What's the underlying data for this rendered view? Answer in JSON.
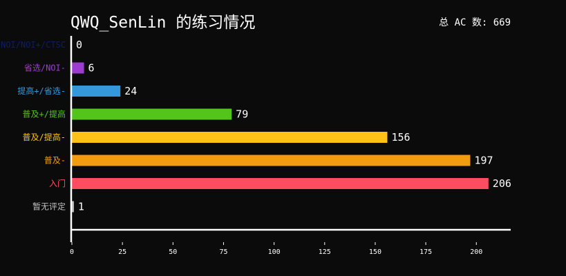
{
  "chart_data": {
    "type": "bar",
    "orientation": "horizontal",
    "title": "QWQ_SenLin 的练习情况",
    "total_label": "总 AC 数: 669",
    "categories": [
      "NOI/NOI+/CTSC",
      "省选/NOI-",
      "提高+/省选-",
      "普及+/提高",
      "普及/提高-",
      "普及-",
      "入门",
      "暂无评定"
    ],
    "values": [
      0,
      6,
      24,
      79,
      156,
      197,
      206,
      1
    ],
    "colors": [
      "#0e1d69",
      "#9d3dcf",
      "#3498db",
      "#52c41a",
      "#ffc116",
      "#f39c11",
      "#fe4c61",
      "#bfbfbf"
    ],
    "xticks": [
      0,
      25,
      50,
      75,
      100,
      125,
      150,
      175,
      200
    ],
    "xlim": [
      0,
      217
    ],
    "grid": false,
    "background": "#0b0b0b"
  }
}
